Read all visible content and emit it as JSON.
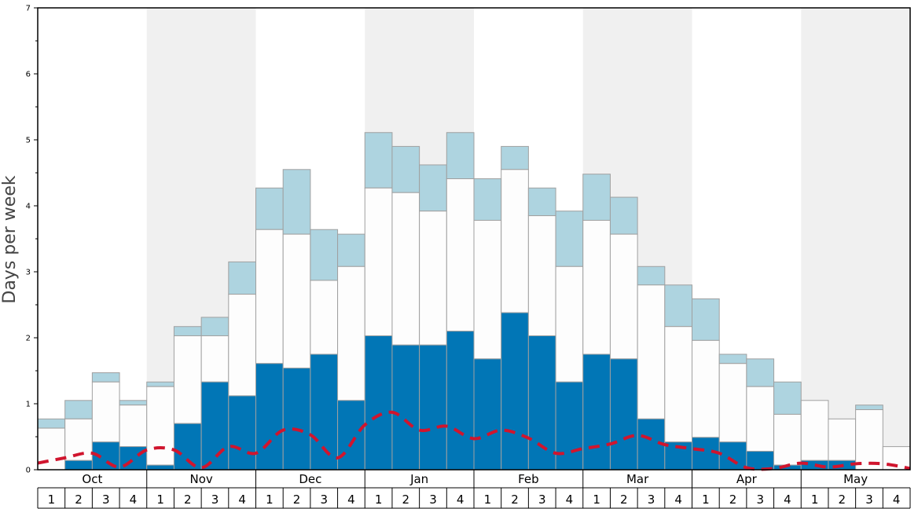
{
  "chart_data": {
    "type": "bar",
    "ylabel": "Days per week",
    "ylim": [
      0,
      7
    ],
    "y_ticks": [
      "0",
      "1",
      "2",
      "3",
      "4",
      "5",
      "6",
      "7"
    ],
    "grid": false,
    "months": [
      "Oct",
      "Nov",
      "Dec",
      "Jan",
      "Feb",
      "Mar",
      "Apr",
      "May"
    ],
    "week_labels": [
      "1",
      "2",
      "3",
      "4"
    ],
    "stack_series_values": {
      "bottom": [
        0.0,
        0.14,
        0.42,
        0.35,
        0.07,
        0.7,
        1.33,
        1.12,
        1.61,
        1.54,
        1.75,
        1.05,
        2.03,
        1.89,
        1.89,
        2.1,
        1.68,
        2.38,
        2.03,
        1.33,
        1.75,
        1.68,
        0.77,
        0.42,
        0.49,
        0.42,
        0.28,
        0.07,
        0.14,
        0.14,
        0.0,
        0.0
      ],
      "middle_top": [
        0.63,
        0.77,
        1.33,
        0.98,
        1.26,
        2.03,
        2.03,
        2.66,
        3.64,
        3.57,
        2.87,
        3.08,
        4.27,
        4.2,
        3.92,
        4.41,
        3.78,
        4.55,
        3.85,
        3.08,
        3.78,
        3.57,
        2.8,
        2.17,
        1.96,
        1.61,
        1.26,
        0.84,
        1.05,
        0.77,
        0.91,
        0.35
      ],
      "total": [
        0.77,
        1.05,
        1.47,
        1.05,
        1.33,
        2.17,
        2.31,
        3.15,
        4.27,
        4.55,
        3.64,
        3.57,
        5.11,
        4.9,
        4.62,
        5.11,
        4.41,
        4.9,
        4.27,
        3.92,
        4.48,
        4.13,
        3.08,
        2.8,
        2.59,
        1.75,
        1.68,
        1.33,
        1.05,
        0.77,
        0.98,
        0.35
      ]
    },
    "line_values": [
      0.1,
      0.18,
      0.25,
      0.04,
      0.3,
      0.3,
      0.03,
      0.35,
      0.25,
      0.6,
      0.53,
      0.18,
      0.68,
      0.87,
      0.6,
      0.66,
      0.47,
      0.6,
      0.48,
      0.25,
      0.32,
      0.39,
      0.52,
      0.38,
      0.32,
      0.25,
      0.03,
      0.02,
      0.1,
      0.04,
      0.09,
      0.09,
      0.02
    ],
    "colors": {
      "bottom": "#0176b6",
      "middle": "#fdfdfd",
      "top": "#aed4e0",
      "bar_stroke": "#a0a0a0",
      "line": "#d0152e",
      "shade": "#f0f0f0"
    }
  }
}
